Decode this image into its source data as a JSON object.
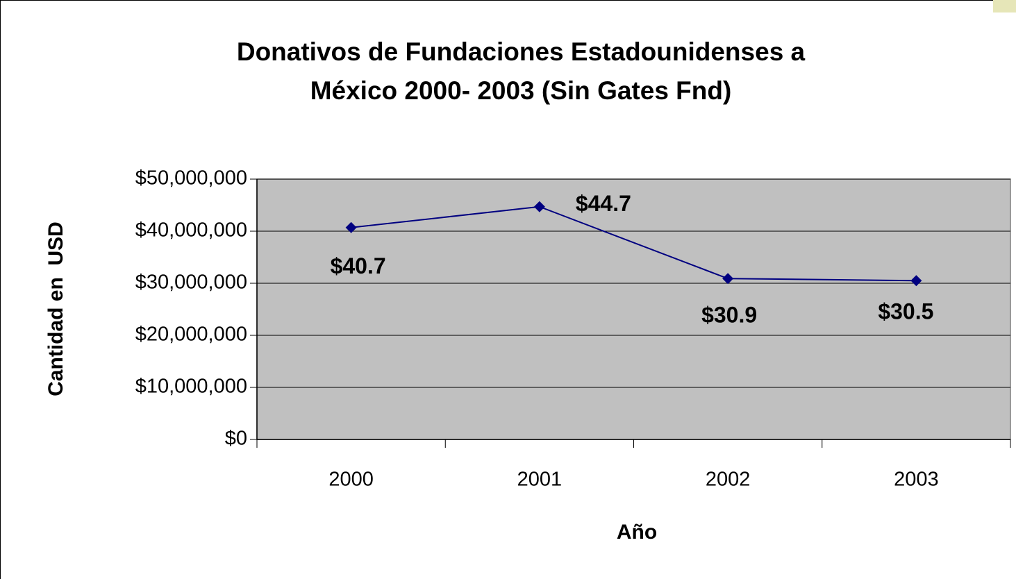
{
  "chart_data": {
    "type": "line",
    "title": [
      "Donativos de Fundaciones Estadounidenses a",
      "México 2000- 2003 (Sin Gates Fnd)"
    ],
    "x_label": "Año",
    "y_label": "Cantidad en  USD",
    "categories": [
      "2000",
      "2001",
      "2002",
      "2003"
    ],
    "series": [
      {
        "color": "#000080",
        "values": [
          40700000,
          44700000,
          30900000,
          30500000
        ],
        "value_labels": [
          "$40.7",
          "$44.7",
          "$30.9",
          "$30.5"
        ]
      }
    ],
    "ylim": [
      0,
      50000000
    ],
    "yticks": [
      {
        "value": 0,
        "label": "$0"
      },
      {
        "value": 10000000,
        "label": "$10,000,000"
      },
      {
        "value": 20000000,
        "label": "$20,000,000"
      },
      {
        "value": 30000000,
        "label": "$30,000,000"
      },
      {
        "value": 40000000,
        "label": "$40,000,000"
      },
      {
        "value": 50000000,
        "label": "$50,000,000"
      }
    ],
    "grid": true,
    "plot_background": "#c0c0c0"
  }
}
